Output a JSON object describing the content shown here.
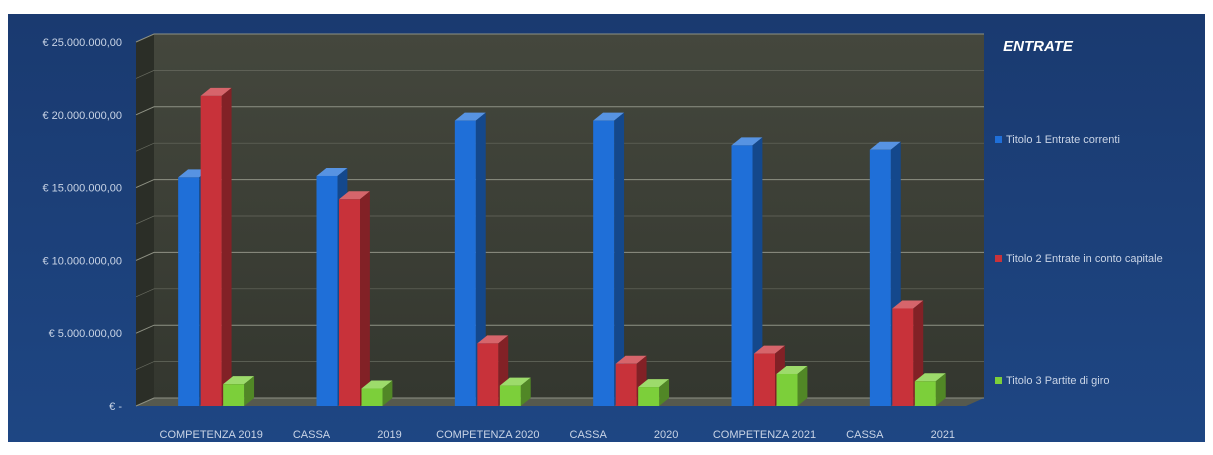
{
  "chart_data": {
    "type": "bar",
    "title": "ENTRATE",
    "categories": [
      "COMPETENZA 2019",
      "CASSA 2019",
      "COMPETENZA 2020",
      "CASSA 2020",
      "COMPETENZA 2021",
      "CASSA 2021"
    ],
    "category_labels": [
      [
        "COMPETENZA 2019"
      ],
      [
        "CASSA",
        "2019"
      ],
      [
        "COMPETENZA 2020"
      ],
      [
        "CASSA",
        "2020"
      ],
      [
        "COMPETENZA 2021"
      ],
      [
        "CASSA",
        "2021"
      ]
    ],
    "series": [
      {
        "name": "Titolo 1 Entrate correnti",
        "color": "#1f6fd8",
        "values": [
          15700000,
          15800000,
          19600000,
          19600000,
          17900000,
          17600000
        ]
      },
      {
        "name": "Titolo 2 Entrate in conto capitale",
        "color": "#c8323a",
        "values": [
          21300000,
          14200000,
          4300000,
          2900000,
          3600000,
          6700000
        ]
      },
      {
        "name": "Titolo 3 Partite di giro",
        "color": "#7ccf3a",
        "values": [
          1500000,
          1200000,
          1400000,
          1300000,
          2200000,
          1700000
        ]
      }
    ],
    "ylim": [
      0,
      25000000
    ],
    "yticks": [
      0,
      5000000,
      10000000,
      15000000,
      20000000,
      25000000
    ],
    "ytick_labels": [
      "€ -",
      "€ 5.000.000,00",
      "€ 10.000.000,00",
      "€ 15.000.000,00",
      "€ 20.000.000,00",
      "€ 25.000.000,00"
    ],
    "grid": true,
    "legend_position": "right",
    "background_color": "#1d3f78",
    "plot_color": "#3a3d35"
  }
}
